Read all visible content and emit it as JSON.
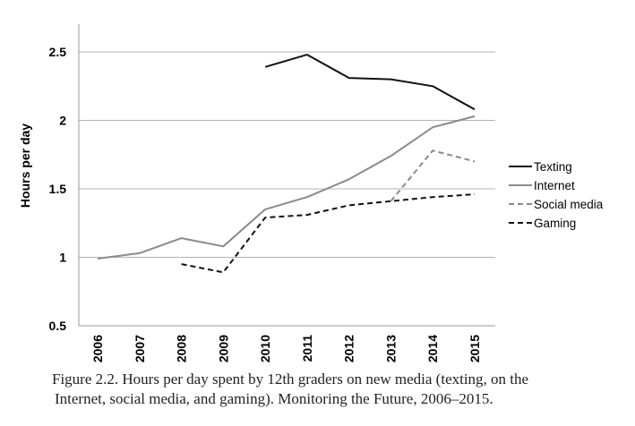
{
  "chart_data": {
    "type": "line",
    "ylabel": "Hours per day",
    "xlabel": "",
    "ylim": [
      0.5,
      2.7
    ],
    "yticks": [
      0.5,
      1,
      1.5,
      2,
      2.5
    ],
    "ytick_labels": [
      "0.5",
      "1",
      "1.5",
      "2",
      "2.5"
    ],
    "categories": [
      "2006",
      "2007",
      "2008",
      "2009",
      "2010",
      "2011",
      "2012",
      "2013",
      "2014",
      "2015"
    ],
    "grid": true,
    "legend_position": "right",
    "series": [
      {
        "name": "Texting",
        "color": "#111111",
        "dash": "solid",
        "values": [
          null,
          null,
          null,
          null,
          2.39,
          2.48,
          2.31,
          2.3,
          2.25,
          2.08
        ]
      },
      {
        "name": "Internet",
        "color": "#8a8a8a",
        "dash": "solid",
        "values": [
          0.99,
          1.03,
          1.14,
          1.08,
          1.35,
          1.44,
          1.57,
          1.74,
          1.95,
          2.03
        ]
      },
      {
        "name": "Social media",
        "color": "#8a8a8a",
        "dash": "dashed",
        "values": [
          null,
          null,
          null,
          null,
          null,
          null,
          null,
          1.41,
          1.78,
          1.7
        ]
      },
      {
        "name": "Gaming",
        "color": "#111111",
        "dash": "dashed",
        "values": [
          null,
          null,
          0.95,
          0.89,
          1.29,
          1.31,
          1.38,
          1.41,
          1.44,
          1.46
        ]
      }
    ]
  },
  "caption": {
    "line1": "Figure 2.2. Hours per day spent by 12th graders on new media (texting, on the",
    "line2": "Internet, social media, and gaming). Monitoring the Future, 2006–2015."
  }
}
